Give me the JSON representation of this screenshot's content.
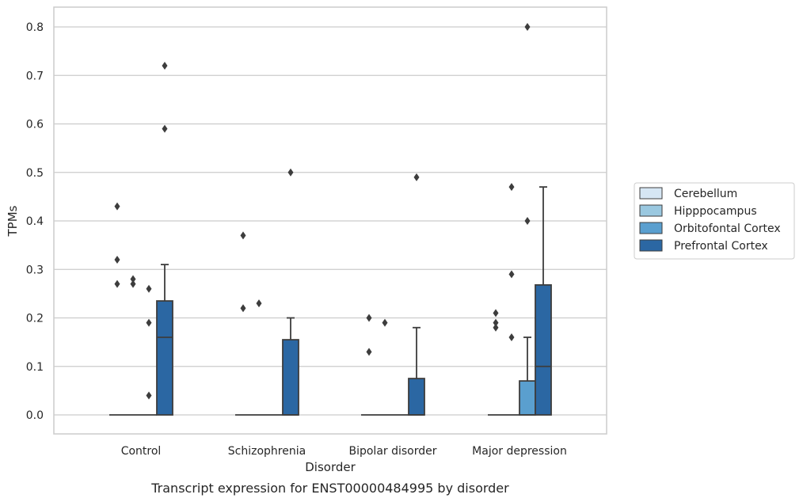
{
  "chart_data": {
    "type": "box",
    "caption": "Transcript expression for ENST00000484995 by disorder",
    "xlabel": "Disorder",
    "ylabel": "TPMs",
    "ylim": [
      -0.04,
      0.84
    ],
    "yticks": [
      0.0,
      0.1,
      0.2,
      0.3,
      0.4,
      0.5,
      0.6,
      0.7,
      0.8
    ],
    "ytick_labels": [
      "0.0",
      "0.1",
      "0.2",
      "0.3",
      "0.4",
      "0.5",
      "0.6",
      "0.7",
      "0.8"
    ],
    "categories": [
      "Control",
      "Schizophrenia",
      "Bipolar disorder",
      "Major depression"
    ],
    "grid": "horizontal",
    "legend_position": "right",
    "series": [
      {
        "name": "Cerebellum",
        "color": "#d6e6f4",
        "boxes": [
          {
            "q1": 0,
            "median": 0,
            "q3": 0,
            "whisker_low": 0,
            "whisker_high": 0,
            "outliers": [
              0.43,
              0.32,
              0.27
            ]
          },
          {
            "q1": 0,
            "median": 0,
            "q3": 0,
            "whisker_low": 0,
            "whisker_high": 0,
            "outliers": [
              0.37,
              0.22
            ]
          },
          {
            "q1": 0,
            "median": 0,
            "q3": 0,
            "whisker_low": 0,
            "whisker_high": 0,
            "outliers": [
              0.2,
              0.13
            ]
          },
          {
            "q1": 0,
            "median": 0,
            "q3": 0,
            "whisker_low": 0,
            "whisker_high": 0,
            "outliers": [
              0.21,
              0.19,
              0.18
            ]
          }
        ]
      },
      {
        "name": "Hipppocampus",
        "color": "#9ac8e0",
        "boxes": [
          {
            "q1": 0,
            "median": 0,
            "q3": 0,
            "whisker_low": 0,
            "whisker_high": 0,
            "outliers": [
              0.28,
              0.27
            ]
          },
          {
            "q1": 0,
            "median": 0,
            "q3": 0,
            "whisker_low": 0,
            "whisker_high": 0,
            "outliers": [
              0.23
            ]
          },
          {
            "q1": 0,
            "median": 0,
            "q3": 0,
            "whisker_low": 0,
            "whisker_high": 0,
            "outliers": [
              0.19
            ]
          },
          {
            "q1": 0,
            "median": 0,
            "q3": 0,
            "whisker_low": 0,
            "whisker_high": 0,
            "outliers": [
              0.47,
              0.29,
              0.16
            ]
          }
        ]
      },
      {
        "name": "Orbitofontal Cortex",
        "color": "#5a9fcf",
        "boxes": [
          {
            "q1": 0,
            "median": 0,
            "q3": 0,
            "whisker_low": 0,
            "whisker_high": 0,
            "outliers": [
              0.26,
              0.19,
              0.04
            ]
          },
          {
            "q1": 0,
            "median": 0,
            "q3": 0,
            "whisker_low": 0,
            "whisker_high": 0,
            "outliers": []
          },
          {
            "q1": 0,
            "median": 0,
            "q3": 0,
            "whisker_low": 0,
            "whisker_high": 0,
            "outliers": []
          },
          {
            "q1": 0,
            "median": 0,
            "q3": 0.07,
            "whisker_low": 0,
            "whisker_high": 0.16,
            "outliers": [
              0.8,
              0.4
            ]
          }
        ]
      },
      {
        "name": "Prefrontal Cortex",
        "color": "#2b67a3",
        "boxes": [
          {
            "q1": 0,
            "median": 0.16,
            "q3": 0.235,
            "whisker_low": 0,
            "whisker_high": 0.31,
            "outliers": [
              0.72,
              0.59
            ]
          },
          {
            "q1": 0,
            "median": 0,
            "q3": 0.155,
            "whisker_low": 0,
            "whisker_high": 0.2,
            "outliers": [
              0.5
            ]
          },
          {
            "q1": 0,
            "median": 0,
            "q3": 0.075,
            "whisker_low": 0,
            "whisker_high": 0.18,
            "outliers": [
              0.49
            ]
          },
          {
            "q1": 0,
            "median": 0.1,
            "q3": 0.268,
            "whisker_low": 0,
            "whisker_high": 0.47,
            "outliers": []
          }
        ]
      }
    ]
  }
}
